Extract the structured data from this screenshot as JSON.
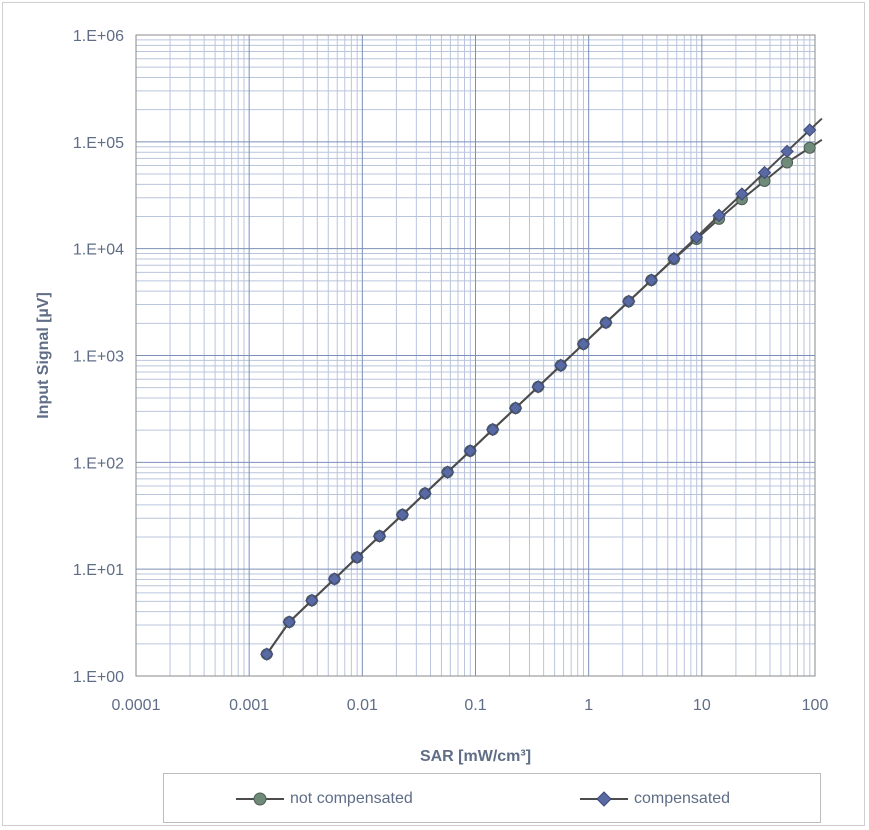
{
  "chart_data": {
    "type": "line",
    "xscale": "log",
    "yscale": "log",
    "xlim": [
      0.0001,
      100
    ],
    "ylim": [
      1,
      1000000
    ],
    "xlabel": "SAR [mW/cm³]",
    "ylabel": "Input Signal [µV]",
    "x_ticks": [
      "0.0001",
      "0.001",
      "0.01",
      "0.1",
      "1",
      "10",
      "100"
    ],
    "y_ticks": [
      "1.E+00",
      "1.E+01",
      "1.E+02",
      "1.E+03",
      "1.E+04",
      "1.E+05",
      "1.E+06"
    ],
    "grid": true,
    "legend_position": "bottom",
    "series": [
      {
        "name": "not compensated",
        "marker": "circle",
        "color": "#6f8a78",
        "x": [
          0.00143,
          0.00226,
          0.00358,
          0.00567,
          0.00898,
          0.0142,
          0.0226,
          0.0358,
          0.0567,
          0.0898,
          0.142,
          0.226,
          0.358,
          0.567,
          0.898,
          1.42,
          2.26,
          3.58,
          5.67,
          8.98,
          14.2,
          22.6,
          35.8,
          56.7,
          89.8
        ],
        "y": [
          1.6,
          3.2,
          5.1,
          8.1,
          12.9,
          20.4,
          32.3,
          51.2,
          81,
          128,
          203,
          322,
          510,
          808,
          1280,
          2030,
          3210,
          5080,
          8000,
          12300,
          19000,
          29000,
          43000,
          64000,
          88000
        ]
      },
      {
        "name": "compensated",
        "marker": "diamond",
        "color": "#5869a4",
        "x": [
          0.00143,
          0.00226,
          0.00358,
          0.00567,
          0.00898,
          0.0142,
          0.0226,
          0.0358,
          0.0567,
          0.0898,
          0.142,
          0.226,
          0.358,
          0.567,
          0.898,
          1.42,
          2.26,
          3.58,
          5.67,
          8.98,
          14.2,
          22.6,
          35.8,
          56.7,
          89.8
        ],
        "y": [
          1.6,
          3.2,
          5.1,
          8.1,
          12.9,
          20.4,
          32.3,
          51.2,
          81,
          128,
          203,
          322,
          510,
          808,
          1280,
          2030,
          3210,
          5080,
          8100,
          12800,
          20500,
          32500,
          51500,
          81500,
          129000
        ]
      }
    ]
  }
}
